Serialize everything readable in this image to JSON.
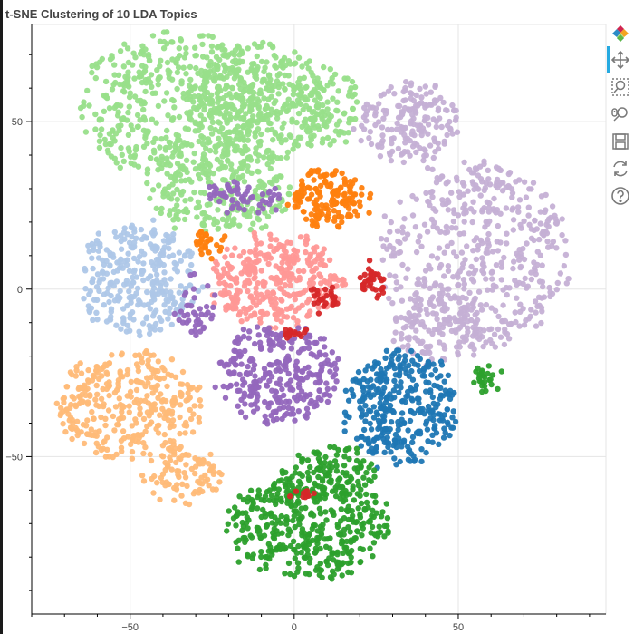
{
  "chart_data": {
    "type": "scatter",
    "title": "t-SNE Clustering of 10 LDA Topics",
    "xlabel": "",
    "ylabel": "",
    "xlim": [
      -80,
      95
    ],
    "ylim": [
      -97,
      79
    ],
    "x_ticks": [
      -50,
      0,
      50
    ],
    "y_ticks": [
      50,
      0,
      -50
    ],
    "grid": true,
    "legend": "none",
    "series": [
      {
        "color": "#98df8a",
        "clusters": [
          {
            "cx": -35,
            "cy": 55,
            "rx": 30,
            "ry": 22,
            "n": 520
          },
          {
            "cx": -12,
            "cy": 55,
            "rx": 22,
            "ry": 18,
            "n": 320
          },
          {
            "cx": -22,
            "cy": 28,
            "rx": 22,
            "ry": 10,
            "n": 200
          },
          {
            "cx": 8,
            "cy": 55,
            "rx": 12,
            "ry": 12,
            "n": 120
          }
        ]
      },
      {
        "color": "#c5b0d5",
        "clusters": [
          {
            "cx": 55,
            "cy": 10,
            "rx": 28,
            "ry": 28,
            "n": 480
          },
          {
            "cx": 35,
            "cy": 50,
            "rx": 15,
            "ry": 12,
            "n": 180
          },
          {
            "cx": 45,
            "cy": -12,
            "rx": 15,
            "ry": 10,
            "n": 120
          }
        ]
      },
      {
        "color": "#aec7e8",
        "clusters": [
          {
            "cx": -48,
            "cy": 3,
            "rx": 18,
            "ry": 16,
            "n": 300
          }
        ]
      },
      {
        "color": "#ffbb78",
        "clusters": [
          {
            "cx": -50,
            "cy": -35,
            "rx": 22,
            "ry": 16,
            "n": 340
          },
          {
            "cx": -35,
            "cy": -55,
            "rx": 12,
            "ry": 8,
            "n": 90
          }
        ]
      },
      {
        "color": "#ff9896",
        "clusters": [
          {
            "cx": -5,
            "cy": 2,
            "rx": 20,
            "ry": 13,
            "n": 340
          }
        ]
      },
      {
        "color": "#9467bd",
        "clusters": [
          {
            "cx": -5,
            "cy": -25,
            "rx": 18,
            "ry": 15,
            "n": 300
          },
          {
            "cx": -15,
            "cy": 27,
            "rx": 10,
            "ry": 4,
            "n": 60
          },
          {
            "cx": -30,
            "cy": -5,
            "rx": 5,
            "ry": 10,
            "n": 40
          }
        ]
      },
      {
        "color": "#ff7f0e",
        "clusters": [
          {
            "cx": 10,
            "cy": 27,
            "rx": 12,
            "ry": 8,
            "n": 160
          },
          {
            "cx": -27,
            "cy": 14,
            "rx": 5,
            "ry": 3,
            "n": 30
          }
        ]
      },
      {
        "color": "#1f77b4",
        "clusters": [
          {
            "cx": 32,
            "cy": -35,
            "rx": 17,
            "ry": 17,
            "n": 340
          }
        ]
      },
      {
        "color": "#2ca02c",
        "clusters": [
          {
            "cx": 5,
            "cy": -70,
            "rx": 24,
            "ry": 16,
            "n": 420
          },
          {
            "cx": 10,
            "cy": -55,
            "rx": 15,
            "ry": 8,
            "n": 100
          },
          {
            "cx": 58,
            "cy": -27,
            "rx": 3,
            "ry": 4,
            "n": 25
          }
        ]
      },
      {
        "color": "#d62728",
        "clusters": [
          {
            "cx": 24,
            "cy": 3,
            "rx": 4,
            "ry": 4,
            "n": 35
          },
          {
            "cx": 10,
            "cy": -2,
            "rx": 5,
            "ry": 3,
            "n": 25
          },
          {
            "cx": 0,
            "cy": -13,
            "rx": 3,
            "ry": 2,
            "n": 15
          },
          {
            "cx": 3,
            "cy": -60,
            "rx": 3,
            "ry": 2,
            "n": 10
          }
        ]
      }
    ]
  },
  "toolbar": {
    "tools": [
      {
        "name": "bokeh-logo-icon",
        "interactable": false
      },
      {
        "name": "pan-tool-icon",
        "interactable": true,
        "active": true
      },
      {
        "name": "box-zoom-tool-icon",
        "interactable": true
      },
      {
        "name": "wheel-zoom-tool-icon",
        "interactable": true
      },
      {
        "name": "save-tool-icon",
        "interactable": true
      },
      {
        "name": "reset-tool-icon",
        "interactable": true
      },
      {
        "name": "help-tool-icon",
        "interactable": true
      }
    ]
  }
}
